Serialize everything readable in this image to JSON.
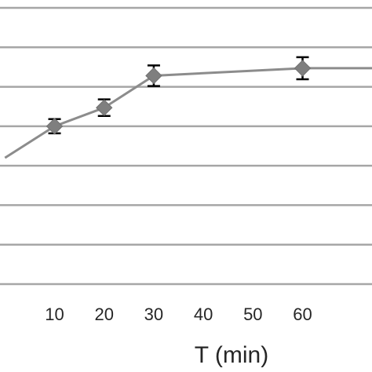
{
  "chart_data": {
    "type": "line",
    "xlabel": "T (min)",
    "ylabel": "",
    "title": "",
    "x_ticks": [
      10,
      20,
      30,
      40,
      50,
      60
    ],
    "xlim": [
      -1,
      74
    ],
    "ylim": [
      0,
      7
    ],
    "y_gridlines": [
      0,
      1,
      2,
      3,
      4,
      5,
      6,
      7
    ],
    "grid": true,
    "series": [
      {
        "x": [
          0,
          10,
          20,
          30,
          60,
          75
        ],
        "y": [
          3.2,
          4.0,
          4.47,
          5.28,
          5.47,
          5.47
        ],
        "err": [
          0,
          0.18,
          0.21,
          0.26,
          0.28,
          0
        ],
        "markers": [
          false,
          true,
          true,
          true,
          true,
          false
        ]
      }
    ]
  },
  "colors": {
    "line": "#8c8c8c",
    "marker": "#7f7f7f",
    "grid": "#a6a6a6",
    "error_bar": "#000000"
  }
}
